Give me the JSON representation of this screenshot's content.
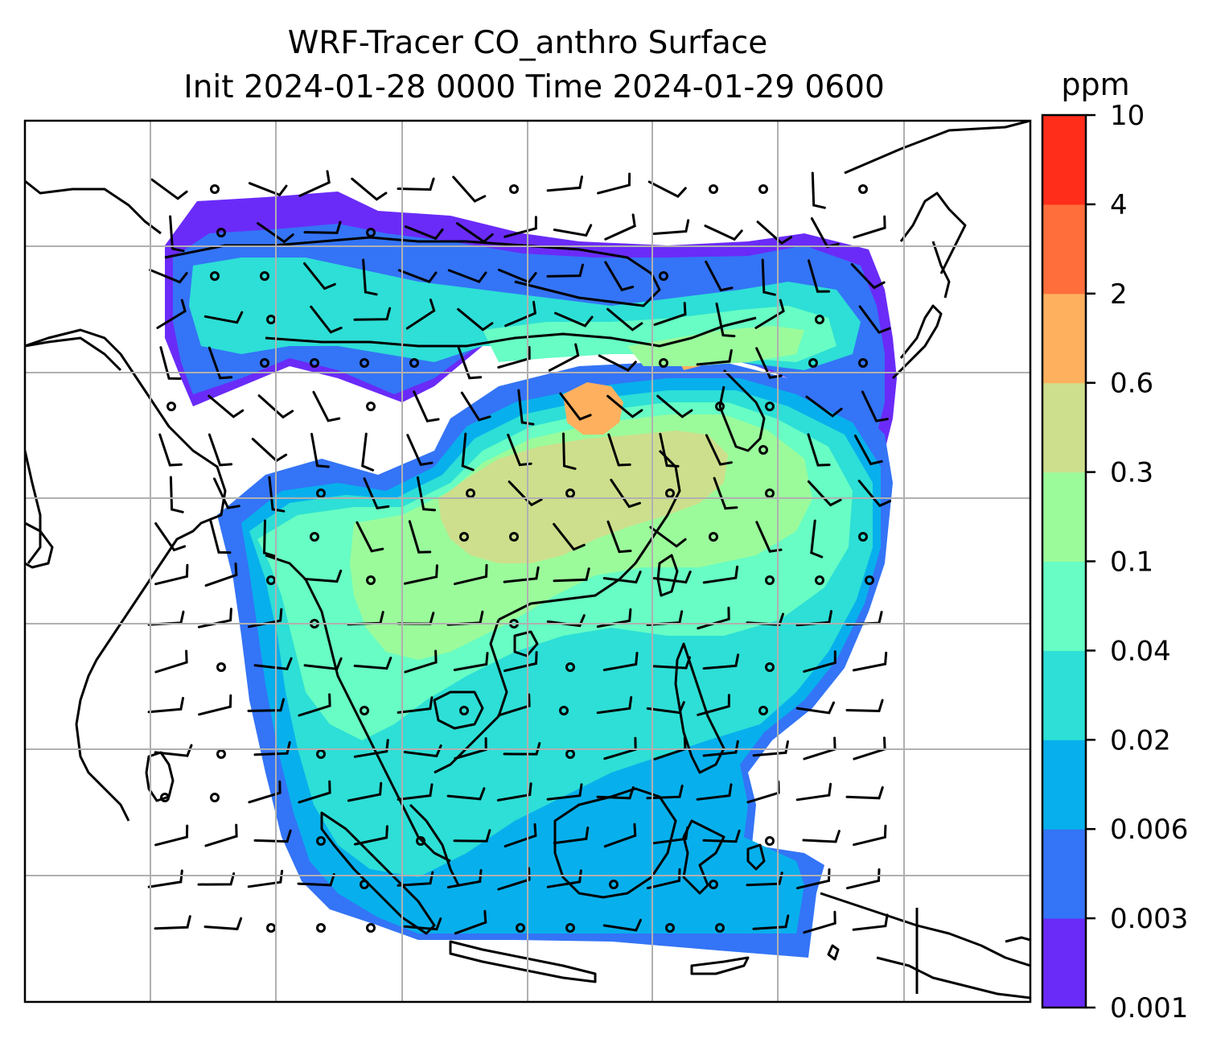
{
  "title": {
    "line1": "WRF-Tracer CO_anthro Surface",
    "line2": "Init 2024-01-28 0000 Time 2024-01-29 0600"
  },
  "colorbar": {
    "unit": "ppm",
    "levels": [
      "0.001",
      "0.003",
      "0.006",
      "0.02",
      "0.04",
      "0.1",
      "0.3",
      "0.6",
      "2",
      "4",
      "10"
    ],
    "colors": [
      "#6a2bf8",
      "#3474f6",
      "#07b0ec",
      "#2ddfd6",
      "#67fdc4",
      "#9bfb9b",
      "#cddf8c",
      "#feb05e",
      "#ff6e3b",
      "#ff2d1a"
    ]
  },
  "map": {
    "background": "#ffffff",
    "grid_color": "#b0b0b0",
    "coastline_color": "#000000",
    "wind_barb_color": "#000000"
  }
}
